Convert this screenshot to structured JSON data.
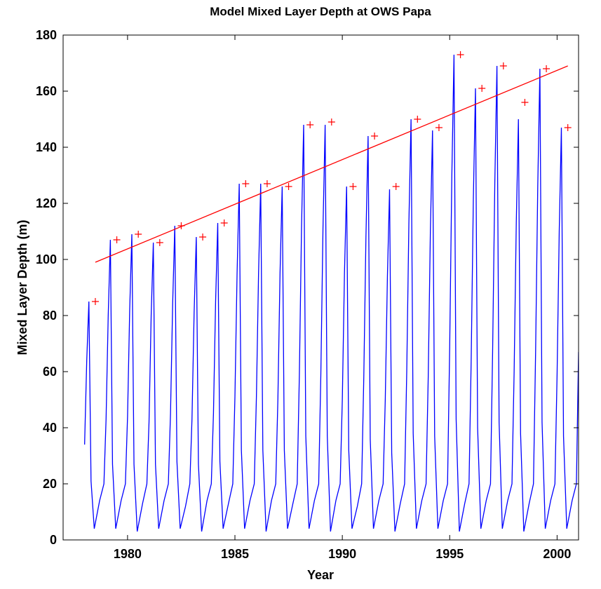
{
  "chart_data": {
    "type": "line",
    "title": "Model Mixed Layer Depth at OWS Papa",
    "xlabel": "Year",
    "ylabel": "Mixed Layer Depth (m)",
    "xlim": [
      1977,
      2001
    ],
    "ylim": [
      0,
      180
    ],
    "xticks": [
      1980,
      1985,
      1990,
      1995,
      2000
    ],
    "yticks": [
      0,
      20,
      40,
      60,
      80,
      100,
      120,
      140,
      160,
      180
    ],
    "series": [
      {
        "color": "#0000ff",
        "style": "line",
        "x": [
          1978,
          1978.1,
          1978.2,
          1978.3,
          1978.45,
          1978.7,
          1978.9,
          1979,
          1979.1,
          1979.2,
          1979.3,
          1979.45,
          1979.7,
          1979.9,
          1980,
          1980.1,
          1980.2,
          1980.3,
          1980.45,
          1980.7,
          1980.9,
          1981,
          1981.1,
          1981.2,
          1981.3,
          1981.45,
          1981.7,
          1981.9,
          1982,
          1982.1,
          1982.2,
          1982.3,
          1982.45,
          1982.7,
          1982.9,
          1983,
          1983.1,
          1983.2,
          1983.3,
          1983.45,
          1983.7,
          1983.9,
          1984,
          1984.1,
          1984.2,
          1984.3,
          1984.45,
          1984.7,
          1984.9,
          1985,
          1985.1,
          1985.2,
          1985.3,
          1985.45,
          1985.7,
          1985.9,
          1986,
          1986.1,
          1986.2,
          1986.3,
          1986.45,
          1986.7,
          1986.9,
          1987,
          1987.1,
          1987.2,
          1987.3,
          1987.45,
          1987.7,
          1987.9,
          1988,
          1988.1,
          1988.2,
          1988.3,
          1988.45,
          1988.7,
          1988.9,
          1989,
          1989.1,
          1989.2,
          1989.3,
          1989.45,
          1989.7,
          1989.9,
          1990,
          1990.1,
          1990.2,
          1990.3,
          1990.45,
          1990.7,
          1990.9,
          1991,
          1991.1,
          1991.2,
          1991.3,
          1991.45,
          1991.7,
          1991.9,
          1992,
          1992.1,
          1992.2,
          1992.3,
          1992.45,
          1992.7,
          1992.9,
          1993,
          1993.1,
          1993.2,
          1993.3,
          1993.45,
          1993.7,
          1993.9,
          1994,
          1994.1,
          1994.2,
          1994.3,
          1994.45,
          1994.7,
          1994.9,
          1995,
          1995.1,
          1995.2,
          1995.3,
          1995.45,
          1995.7,
          1995.9,
          1996,
          1996.1,
          1996.2,
          1996.3,
          1996.45,
          1996.7,
          1996.9,
          1997,
          1997.1,
          1997.2,
          1997.3,
          1997.45,
          1997.7,
          1997.9,
          1998,
          1998.1,
          1998.2,
          1998.3,
          1998.45,
          1998.7,
          1998.9,
          1999,
          1999.1,
          1999.2,
          1999.3,
          1999.45,
          1999.7,
          1999.9,
          2000,
          2000.1,
          2000.2,
          2000.3,
          2000.45,
          2000.7,
          2000.9,
          2001
        ],
        "values": [
          34,
          64,
          85,
          21,
          4,
          14,
          20,
          43,
          80,
          107,
          27,
          4,
          14,
          20,
          44,
          82,
          109,
          27,
          3,
          13,
          20,
          42,
          80,
          106,
          27,
          4,
          14,
          20,
          45,
          84,
          112,
          28,
          4,
          12,
          20,
          43,
          81,
          108,
          27,
          3,
          14,
          20,
          45,
          85,
          113,
          28,
          4,
          13,
          20,
          51,
          95,
          127,
          32,
          4,
          14,
          20,
          51,
          95,
          127,
          32,
          3,
          14,
          20,
          50,
          95,
          126,
          32,
          4,
          13,
          20,
          59,
          111,
          148,
          37,
          4,
          14,
          20,
          59,
          111,
          148,
          37,
          3,
          14,
          20,
          50,
          95,
          126,
          32,
          4,
          12,
          20,
          58,
          108,
          144,
          36,
          4,
          14,
          20,
          50,
          94,
          125,
          31,
          3,
          13,
          20,
          60,
          113,
          150,
          38,
          4,
          14,
          20,
          58,
          110,
          146,
          37,
          4,
          14,
          20,
          69,
          130,
          173,
          43,
          3,
          13,
          20,
          64,
          121,
          161,
          40,
          4,
          14,
          20,
          68,
          127,
          169,
          42,
          4,
          14,
          20,
          60,
          113,
          150,
          38,
          3,
          13,
          20,
          67,
          126,
          168,
          42,
          4,
          14,
          20,
          59,
          110,
          147,
          37,
          4,
          14,
          20,
          67
        ]
      },
      {
        "color": "#ff0000",
        "style": "markers",
        "x": [
          1978.5,
          1979.5,
          1980.5,
          1981.5,
          1982.5,
          1983.5,
          1984.5,
          1985.5,
          1986.5,
          1987.5,
          1988.5,
          1989.5,
          1990.5,
          1991.5,
          1992.5,
          1993.5,
          1994.5,
          1995.5,
          1996.5,
          1997.5,
          1998.5,
          1999.5,
          2000.5
        ],
        "values": [
          85,
          107,
          109,
          106,
          112,
          108,
          113,
          127,
          127,
          126,
          148,
          149,
          126,
          144,
          126,
          150,
          147,
          173,
          161,
          169,
          156,
          168,
          147
        ]
      },
      {
        "color": "#ff0000",
        "style": "line",
        "x": [
          1978.5,
          2000.5
        ],
        "values": [
          99,
          169
        ]
      }
    ]
  }
}
